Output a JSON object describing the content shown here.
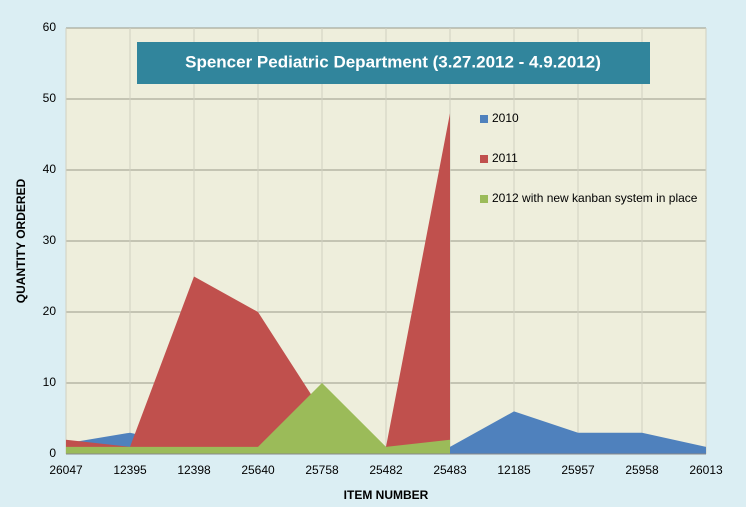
{
  "chart_data": {
    "type": "area",
    "title": "Spencer Pediatric Department (3.27.2012 - 4.9.2012)",
    "x_label": "ITEM NUMBER",
    "y_label": "QUANTITY ORDERED",
    "categories": [
      "26047",
      "12395",
      "12398",
      "25640",
      "25758",
      "25482",
      "25483",
      "12185",
      "25957",
      "25958",
      "26013"
    ],
    "series": [
      {
        "name": "2010",
        "color": "#4f81bd",
        "values": [
          1.5,
          3,
          1,
          1,
          1,
          1,
          1,
          6,
          3,
          3,
          1
        ]
      },
      {
        "name": "2011",
        "color": "#c0504d",
        "values": [
          2,
          1,
          25,
          20,
          6,
          1,
          48,
          null,
          null,
          null,
          null
        ]
      },
      {
        "name": "2012 with new kanban system in place",
        "color": "#9bbb59",
        "values": [
          1,
          1,
          1,
          1,
          10,
          1,
          2,
          null,
          null,
          null,
          null
        ]
      }
    ],
    "ylim": [
      0,
      60
    ],
    "yticks": [
      0,
      10,
      20,
      30,
      40,
      50,
      60
    ],
    "grid": true,
    "legend": "right"
  }
}
